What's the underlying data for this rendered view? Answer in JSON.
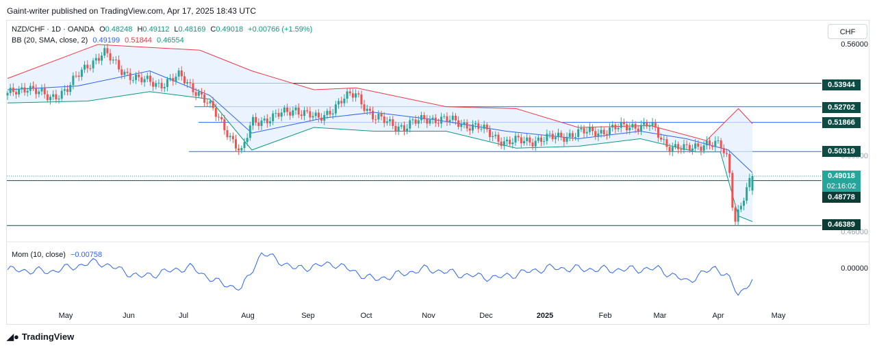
{
  "header": {
    "published_by": "Gaint-writer published on TradingView.com, Apr 17, 2025 18:43 UTC"
  },
  "legend": {
    "symbol": "NZD/CHF · 1D · OANDA",
    "open_label": "O",
    "open": "0.48248",
    "high_label": "H",
    "high": "0.49112",
    "low_label": "L",
    "low": "0.48169",
    "close_label": "C",
    "close": "0.49018",
    "change": "+0.00766 (+1.59%)",
    "bb_label": "BB (20, SMA, close, 2)",
    "bb_basis": "0.49199",
    "bb_upper": "0.51844",
    "bb_lower": "0.46554",
    "mom_label": "Mom (10, close)",
    "mom_value": "−0.00758"
  },
  "currency_button": "CHF",
  "colors": {
    "up": "#26a69a",
    "down": "#ef5350",
    "basis": "#2962ff",
    "upper": "#f23645",
    "lower": "#089981",
    "band_fill": "#e3effd",
    "hline": "#0d4b45",
    "hline_blue": "#2962ff",
    "price_tag": "#26a69a",
    "level_tag": "#0b3d36",
    "momentum": "#2962ff"
  },
  "price_axis": {
    "grid_labels": [
      "0.56000",
      "0.48000"
    ],
    "obscured_labels": [
      "0.50000",
      "0.46000"
    ],
    "levels": [
      "0.53944",
      "0.52702",
      "0.51866",
      "0.50319"
    ],
    "dark_tags": [
      "0.48778",
      "0.46389"
    ],
    "current_price": "0.49018",
    "countdown": "02:16:02"
  },
  "momentum_axis": {
    "label": "0.00000"
  },
  "time_axis": [
    "May",
    "Jun",
    "Jul",
    "Aug",
    "Sep",
    "Oct",
    "Nov",
    "Dec",
    "2025",
    "Feb",
    "Mar",
    "Apr",
    "May"
  ],
  "footer": {
    "logo_text": "TradingView"
  },
  "chart_data": {
    "type": "candlestick",
    "title": "NZD/CHF · 1D · OANDA",
    "ylim": [
      0.4585,
      0.5648
    ],
    "horizontal_levels": [
      0.53944,
      0.52702,
      0.51866,
      0.50319,
      0.48778,
      0.46389
    ],
    "ohlc_last": {
      "open": 0.48248,
      "high": 0.49112,
      "low": 0.48169,
      "close": 0.49018
    },
    "series": [
      {
        "name": "close",
        "x": [
          "2024-04-10",
          "2024-04-20",
          "2024-05-01",
          "2024-05-10",
          "2024-05-20",
          "2024-05-28",
          "2024-06-05",
          "2024-06-15",
          "2024-06-25",
          "2024-07-05",
          "2024-07-15",
          "2024-07-25",
          "2024-08-05",
          "2024-08-10",
          "2024-08-20",
          "2024-09-01",
          "2024-09-12",
          "2024-09-25",
          "2024-10-01",
          "2024-10-10",
          "2024-10-25",
          "2024-11-05",
          "2024-11-20",
          "2024-12-01",
          "2024-12-15",
          "2024-12-25",
          "2025-01-05",
          "2025-01-20",
          "2025-02-01",
          "2025-02-15",
          "2025-02-25",
          "2025-03-05",
          "2025-03-15",
          "2025-03-25",
          "2025-04-01",
          "2025-04-05",
          "2025-04-08",
          "2025-04-11",
          "2025-04-17"
        ],
        "values": [
          0.533,
          0.538,
          0.531,
          0.537,
          0.549,
          0.556,
          0.547,
          0.541,
          0.539,
          0.543,
          0.534,
          0.52,
          0.502,
          0.519,
          0.521,
          0.526,
          0.52,
          0.531,
          0.534,
          0.521,
          0.516,
          0.521,
          0.519,
          0.516,
          0.508,
          0.509,
          0.51,
          0.513,
          0.514,
          0.517,
          0.517,
          0.507,
          0.504,
          0.508,
          0.506,
          0.498,
          0.466,
          0.475,
          0.49
        ]
      },
      {
        "name": "BB basis",
        "x": [
          "2024-04-10",
          "2024-05-15",
          "2024-06-20",
          "2024-07-20",
          "2024-08-10",
          "2024-09-15",
          "2024-10-10",
          "2024-11-10",
          "2024-12-15",
          "2025-01-20",
          "2025-02-20",
          "2025-03-15",
          "2025-04-05",
          "2025-04-17"
        ],
        "values": [
          0.536,
          0.538,
          0.546,
          0.533,
          0.513,
          0.521,
          0.524,
          0.52,
          0.514,
          0.51,
          0.514,
          0.51,
          0.504,
          0.492
        ]
      },
      {
        "name": "BB upper",
        "x": [
          "2024-04-10",
          "2024-05-25",
          "2024-07-15",
          "2024-08-10",
          "2024-09-10",
          "2024-10-01",
          "2024-11-15",
          "2024-12-20",
          "2025-01-20",
          "2025-02-25",
          "2025-03-25",
          "2025-04-10",
          "2025-04-17"
        ],
        "values": [
          0.542,
          0.56,
          0.557,
          0.546,
          0.536,
          0.537,
          0.527,
          0.526,
          0.516,
          0.517,
          0.509,
          0.526,
          0.518
        ]
      },
      {
        "name": "BB lower",
        "x": [
          "2024-04-10",
          "2024-05-20",
          "2024-06-20",
          "2024-07-20",
          "2024-08-10",
          "2024-09-10",
          "2024-10-10",
          "2024-11-15",
          "2024-12-20",
          "2025-01-20",
          "2025-02-20",
          "2025-03-20",
          "2025-04-01",
          "2025-04-10",
          "2025-04-17"
        ],
        "values": [
          0.529,
          0.53,
          0.535,
          0.531,
          0.504,
          0.516,
          0.514,
          0.514,
          0.505,
          0.506,
          0.51,
          0.503,
          0.503,
          0.469,
          0.466
        ]
      },
      {
        "name": "Mom (10, close)",
        "x": [
          "2024-04-10",
          "2024-05-01",
          "2024-05-25",
          "2024-06-15",
          "2024-07-10",
          "2024-07-25",
          "2024-08-05",
          "2024-08-15",
          "2024-09-01",
          "2024-09-20",
          "2024-10-10",
          "2024-11-05",
          "2024-11-25",
          "2024-12-10",
          "2025-01-05",
          "2025-02-05",
          "2025-03-01",
          "2025-03-15",
          "2025-03-30",
          "2025-04-05",
          "2025-04-10",
          "2025-04-17"
        ],
        "values": [
          0.003,
          0.001,
          0.012,
          -0.005,
          0.006,
          -0.012,
          -0.018,
          0.022,
          0.004,
          0.01,
          -0.008,
          0.004,
          -0.003,
          -0.006,
          0.005,
          0.003,
          0.004,
          -0.01,
          0.006,
          -0.006,
          -0.025,
          -0.00758
        ]
      }
    ]
  }
}
